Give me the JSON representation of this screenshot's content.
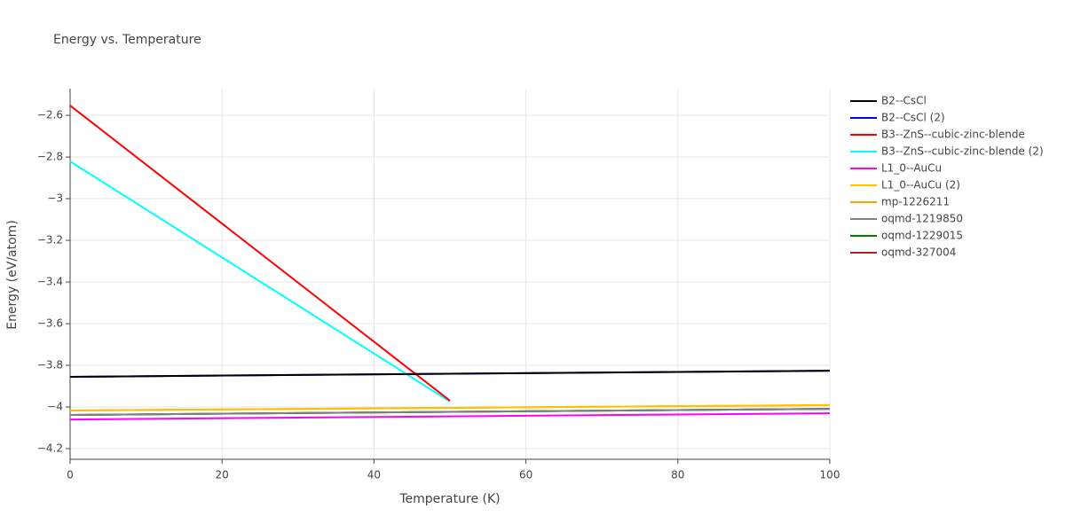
{
  "chart_data": {
    "type": "line",
    "title": "Energy vs. Temperature",
    "x_label": "Temperature (K)",
    "y_label": "Energy (eV/atom)",
    "xlim": [
      0,
      100
    ],
    "xticks": [
      0,
      20,
      40,
      60,
      80,
      100
    ],
    "ylim": [
      -4.251,
      -2.472
    ],
    "yticks": [
      {
        "value": -4.2,
        "label": "−4.2"
      },
      {
        "value": -4,
        "label": "−4"
      },
      {
        "value": -3.8,
        "label": "−3.8"
      },
      {
        "value": -3.6,
        "label": "−3.6"
      },
      {
        "value": -3.4,
        "label": "−3.4"
      },
      {
        "value": -3.2,
        "label": "−3.2"
      },
      {
        "value": -3,
        "label": "−3"
      },
      {
        "value": -2.8,
        "label": "−2.8"
      },
      {
        "value": -2.6,
        "label": "−2.6"
      }
    ],
    "grid": true,
    "legend": "right",
    "series": [
      {
        "name": "B2--CsCl",
        "color": "#000000",
        "x": [
          0,
          100
        ],
        "values": [
          -3.855,
          -3.826
        ]
      },
      {
        "name": "B2--CsCl (2)",
        "color": "#0000ff",
        "x": [
          0,
          100
        ],
        "values": [
          -3.855,
          -3.826
        ]
      },
      {
        "name": "B3--ZnS--cubic-zinc-blende",
        "color": "#ff0000",
        "x": [
          0,
          50
        ],
        "values": [
          -2.553,
          -3.97
        ]
      },
      {
        "name": "B3--ZnS--cubic-zinc-blende (2)",
        "color": "#00ffff",
        "x": [
          0,
          50
        ],
        "values": [
          -2.821,
          -3.974
        ]
      },
      {
        "name": "L1_0--AuCu",
        "color": "#ff00ff",
        "x": [
          0,
          100
        ],
        "values": [
          -4.06,
          -4.03
        ]
      },
      {
        "name": "L1_0--AuCu (2)",
        "color": "#ffc000",
        "x": [
          0,
          100
        ],
        "values": [
          -4.017,
          -3.991
        ]
      },
      {
        "name": "mp-1226211",
        "color": "#ffa500",
        "x": [
          0,
          100
        ],
        "values": [
          -4.017,
          -3.991
        ]
      },
      {
        "name": "oqmd-1219850",
        "color": "#808080",
        "x": [
          0,
          100
        ],
        "values": [
          -4.038,
          -4.009
        ]
      },
      {
        "name": "oqmd-1229015",
        "color": "#008000",
        "x": [
          0,
          100
        ],
        "values": [
          -4.038,
          -4.009
        ]
      },
      {
        "name": "oqmd-327004",
        "color": "#b22222",
        "x": [
          0,
          100
        ],
        "values": [
          -4.038,
          -4.009
        ]
      }
    ]
  }
}
